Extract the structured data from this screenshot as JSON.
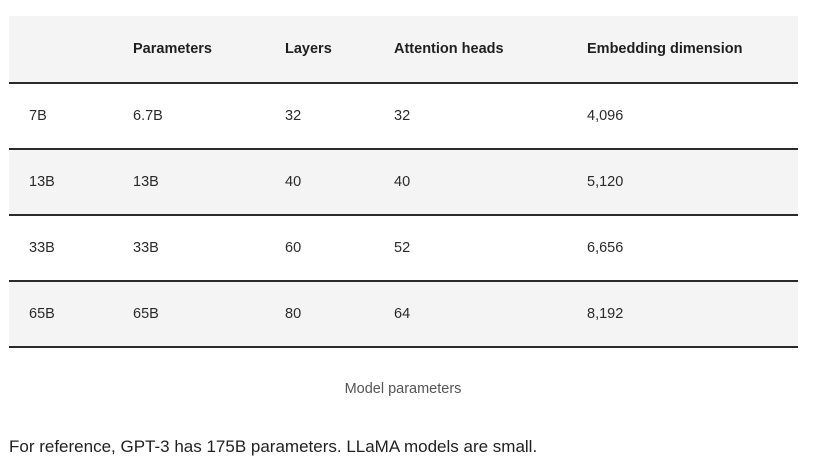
{
  "table": {
    "headers": [
      "",
      "Parameters",
      "Layers",
      "Attention heads",
      "Embedding dimension"
    ],
    "rows": [
      [
        "7B",
        "6.7B",
        "32",
        "32",
        "4,096"
      ],
      [
        "13B",
        "13B",
        "40",
        "40",
        "5,120"
      ],
      [
        "33B",
        "33B",
        "60",
        "52",
        "6,656"
      ],
      [
        "65B",
        "65B",
        "80",
        "64",
        "8,192"
      ]
    ]
  },
  "caption": "Model parameters",
  "reference_text": "For reference, GPT-3 has 175B parameters. LLaMA models are small.",
  "colors": {
    "header_bg": "#f4f4f5",
    "alt_row_bg": "#f4f4f5",
    "rule": "#2b2b2b"
  }
}
